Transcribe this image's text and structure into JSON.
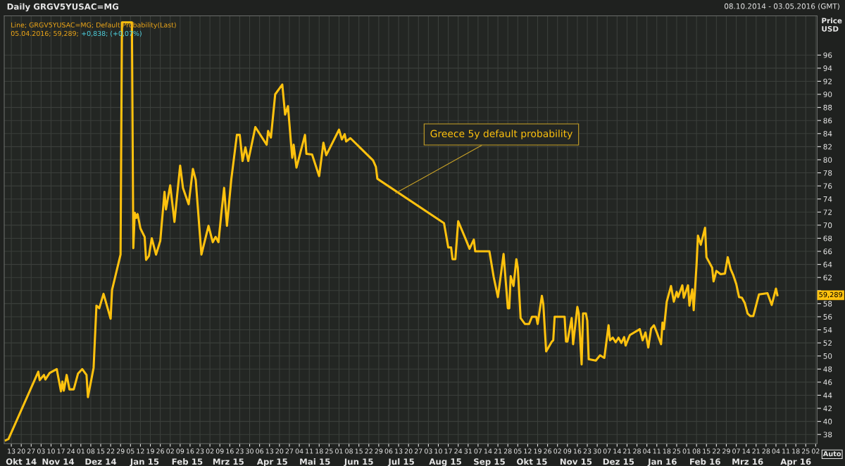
{
  "chart_data": {
    "type": "line",
    "title": "Daily GRGV5YUSAC=MG",
    "subtitle": "Line; GRGV5YUSAC=MG; Default Probability(Last)",
    "ylabel": "Price\nUSD",
    "x": [
      "2014-10-09",
      "2014-10-11",
      "2014-11-01",
      "2014-11-02",
      "2014-11-05",
      "2014-11-06",
      "2014-11-09",
      "2014-11-14",
      "2014-11-17",
      "2014-11-18",
      "2014-11-19",
      "2014-11-21",
      "2014-11-23",
      "2014-11-26",
      "2014-11-29",
      "2014-12-02",
      "2014-12-05",
      "2014-12-06",
      "2014-12-10",
      "2014-12-12",
      "2014-12-14",
      "2014-12-17",
      "2014-12-22",
      "2014-12-23",
      "2014-12-29",
      "2014-12-30",
      "2015-01-06",
      "2015-01-07",
      "2015-01-08",
      "2015-01-09",
      "2015-01-10",
      "2015-01-12",
      "2015-01-15",
      "2015-01-16",
      "2015-01-18",
      "2015-01-20",
      "2015-01-23",
      "2015-01-26",
      "2015-01-29",
      "2015-01-30",
      "2015-02-02",
      "2015-02-05",
      "2015-02-09",
      "2015-02-11",
      "2015-02-15",
      "2015-02-18",
      "2015-02-20",
      "2015-02-24",
      "2015-03-01",
      "2015-03-04",
      "2015-03-06",
      "2015-03-08",
      "2015-03-10",
      "2015-03-12",
      "2015-03-14",
      "2015-03-17",
      "2015-03-21",
      "2015-03-23",
      "2015-03-25",
      "2015-03-27",
      "2015-03-29",
      "2015-04-03",
      "2015-04-11",
      "2015-04-12",
      "2015-04-14",
      "2015-04-17",
      "2015-04-22",
      "2015-04-24",
      "2015-04-26",
      "2015-04-29",
      "2015-04-30",
      "2015-05-02",
      "2015-05-08",
      "2015-05-09",
      "2015-05-13",
      "2015-05-18",
      "2015-05-21",
      "2015-05-23",
      "2015-06-01",
      "2015-06-03",
      "2015-06-05",
      "2015-06-06",
      "2015-06-09",
      "2015-06-25",
      "2015-06-27",
      "2015-06-28",
      "2015-08-14",
      "2015-08-17",
      "2015-08-19",
      "2015-08-20",
      "2015-08-22",
      "2015-08-24",
      "2015-08-29",
      "2015-09-01",
      "2015-09-04",
      "2015-09-05",
      "2015-09-15",
      "2015-09-18",
      "2015-09-21",
      "2015-09-25",
      "2015-09-28",
      "2015-09-29",
      "2015-09-30",
      "2015-10-02",
      "2015-10-04",
      "2015-10-05",
      "2015-10-07",
      "2015-10-10",
      "2015-10-13",
      "2015-10-15",
      "2015-10-18",
      "2015-10-19",
      "2015-10-22",
      "2015-10-23",
      "2015-10-25",
      "2015-10-29",
      "2015-10-30",
      "2015-10-31",
      "2015-11-07",
      "2015-11-08",
      "2015-11-09",
      "2015-11-12",
      "2015-11-13",
      "2015-11-16",
      "2015-11-17",
      "2015-11-19",
      "2015-11-20",
      "2015-11-22",
      "2015-11-23",
      "2015-11-24",
      "2015-11-29",
      "2015-12-02",
      "2015-12-05",
      "2015-12-08",
      "2015-12-09",
      "2015-12-11",
      "2015-12-13",
      "2015-12-15",
      "2015-12-17",
      "2015-12-19",
      "2015-12-20",
      "2015-12-23",
      "2015-12-30",
      "2016-01-01",
      "2016-01-03",
      "2016-01-05",
      "2016-01-07",
      "2016-01-09",
      "2016-01-11",
      "2016-01-14",
      "2016-01-15",
      "2016-01-16",
      "2016-01-18",
      "2016-01-21",
      "2016-01-23",
      "2016-01-25",
      "2016-01-26",
      "2016-01-29",
      "2016-01-30",
      "2016-02-02",
      "2016-02-03",
      "2016-02-05",
      "2016-02-06",
      "2016-02-08",
      "2016-02-09",
      "2016-02-11",
      "2016-02-14",
      "2016-02-15",
      "2016-02-19",
      "2016-02-20",
      "2016-02-22",
      "2016-02-25",
      "2016-02-28",
      "2016-03-01",
      "2016-03-03",
      "2016-03-05",
      "2016-03-07",
      "2016-03-09",
      "2016-03-11",
      "2016-03-13",
      "2016-03-15",
      "2016-03-17",
      "2016-03-19",
      "2016-03-23",
      "2016-03-29",
      "2016-04-01",
      "2016-04-04",
      "2016-04-05"
    ],
    "series": [
      {
        "color": "#ffc20e",
        "values": [
          37.1,
          37.3,
          47.6,
          46.3,
          47.1,
          46.4,
          47.4,
          48.0,
          44.6,
          46.1,
          44.7,
          47.1,
          44.9,
          44.9,
          47.3,
          48.0,
          47.1,
          43.7,
          48.2,
          57.7,
          57.3,
          59.5,
          55.7,
          60.1,
          65.5,
          101.0,
          101.0,
          66.5,
          71.9,
          71.1,
          71.7,
          69.5,
          68.2,
          64.7,
          65.3,
          68.0,
          65.5,
          67.6,
          75.1,
          72.4,
          76.1,
          70.5,
          79.1,
          75.7,
          73.2,
          78.6,
          76.9,
          65.5,
          69.9,
          67.4,
          68.2,
          67.4,
          71.7,
          75.7,
          69.9,
          76.9,
          83.8,
          83.8,
          79.8,
          81.9,
          79.8,
          85.0,
          82.3,
          84.4,
          83.4,
          90.0,
          91.5,
          86.9,
          88.2,
          80.3,
          82.3,
          78.8,
          83.8,
          80.9,
          80.8,
          77.5,
          82.6,
          80.7,
          84.6,
          83.1,
          83.9,
          82.8,
          83.3,
          79.9,
          78.9,
          77.1,
          70.3,
          66.6,
          66.6,
          64.8,
          64.8,
          70.6,
          68.0,
          66.4,
          67.8,
          66.0,
          66.0,
          62.1,
          59.0,
          65.6,
          57.3,
          57.3,
          62.2,
          60.7,
          64.8,
          63.5,
          55.8,
          54.9,
          54.9,
          56.0,
          56.0,
          54.9,
          59.2,
          57.9,
          50.7,
          52.2,
          52.4,
          56.0,
          56.0,
          52.2,
          52.2,
          55.8,
          51.8,
          57.5,
          56.5,
          48.7,
          56.5,
          56.5,
          55.4,
          49.5,
          49.3,
          50.1,
          49.7,
          54.7,
          52.4,
          52.8,
          52.1,
          52.8,
          52.0,
          52.9,
          51.6,
          53.2,
          54.1,
          52.4,
          53.6,
          51.3,
          54.2,
          54.7,
          53.6,
          51.8,
          55.1,
          54.1,
          58.3,
          60.7,
          58.3,
          59.8,
          59.0,
          60.8,
          58.9,
          60.8,
          57.7,
          60.2,
          57.0,
          63.9,
          68.4,
          67.0,
          69.6,
          65.1,
          63.5,
          61.4,
          63.0,
          62.5,
          62.6,
          65.1,
          63.3,
          62.3,
          61.0,
          59.0,
          58.9,
          58.1,
          56.5,
          56.1,
          56.1,
          59.4,
          59.6,
          57.8,
          60.3,
          59.289
        ]
      }
    ],
    "xlim": [
      "2014-10-08",
      "2016-05-03"
    ],
    "x2lim": [
      "2014-10-08",
      "2016-05-03"
    ],
    "ylim": [
      36.6,
      102.0
    ],
    "yticks": [
      38,
      40,
      42,
      44,
      46,
      48,
      50,
      52,
      54,
      56,
      58,
      {
        "value": 60,
        "label": null
      },
      62,
      64,
      66,
      68,
      70,
      72,
      74,
      76,
      78,
      80,
      82,
      84,
      86,
      88,
      90,
      92,
      94,
      96
    ],
    "xticks": [
      {
        "value": "2014-10-13",
        "label": "13"
      },
      {
        "value": "2014-10-20",
        "label": "20"
      },
      {
        "value": "2014-10-27",
        "label": "27"
      },
      {
        "value": "2014-11-03",
        "label": "03"
      },
      {
        "value": "2014-11-10",
        "label": "10"
      },
      {
        "value": "2014-11-17",
        "label": "17"
      },
      {
        "value": "2014-11-24",
        "label": "24"
      },
      {
        "value": "2014-12-01",
        "label": "01"
      },
      {
        "value": "2014-12-08",
        "label": "08"
      },
      {
        "value": "2014-12-15",
        "label": "15"
      },
      {
        "value": "2014-12-22",
        "label": "22"
      },
      {
        "value": "2014-12-29",
        "label": "29"
      },
      {
        "value": "2015-01-05",
        "label": "05"
      },
      {
        "value": "2015-01-12",
        "label": "12"
      },
      {
        "value": "2015-01-19",
        "label": "19"
      },
      {
        "value": "2015-01-26",
        "label": "26"
      },
      {
        "value": "2015-02-02",
        "label": "02"
      },
      {
        "value": "2015-02-09",
        "label": "09"
      },
      {
        "value": "2015-02-16",
        "label": "16"
      },
      {
        "value": "2015-02-23",
        "label": "23"
      },
      {
        "value": "2015-03-02",
        "label": "02"
      },
      {
        "value": "2015-03-09",
        "label": "09"
      },
      {
        "value": "2015-03-16",
        "label": "16"
      },
      {
        "value": "2015-03-23",
        "label": "23"
      },
      {
        "value": "2015-03-30",
        "label": "30"
      },
      {
        "value": "2015-04-06",
        "label": "06"
      },
      {
        "value": "2015-04-13",
        "label": "13"
      },
      {
        "value": "2015-04-20",
        "label": "20"
      },
      {
        "value": "2015-04-27",
        "label": "27"
      },
      {
        "value": "2015-05-04",
        "label": "04"
      },
      {
        "value": "2015-05-11",
        "label": "11"
      },
      {
        "value": "2015-05-18",
        "label": "18"
      },
      {
        "value": "2015-05-25",
        "label": "25"
      },
      {
        "value": "2015-06-01",
        "label": "01"
      },
      {
        "value": "2015-06-08",
        "label": "08"
      },
      {
        "value": "2015-06-15",
        "label": "15"
      },
      {
        "value": "2015-06-22",
        "label": "22"
      },
      {
        "value": "2015-06-29",
        "label": "29"
      },
      {
        "value": "2015-07-06",
        "label": "06"
      },
      {
        "value": "2015-07-13",
        "label": "13"
      },
      {
        "value": "2015-07-20",
        "label": "20"
      },
      {
        "value": "2015-07-27",
        "label": "27"
      },
      {
        "value": "2015-08-03",
        "label": "03"
      },
      {
        "value": "2015-08-10",
        "label": "10"
      },
      {
        "value": "2015-08-17",
        "label": "17"
      },
      {
        "value": "2015-08-24",
        "label": "24"
      },
      {
        "value": "2015-08-31",
        "label": "31"
      },
      {
        "value": "2015-09-07",
        "label": "07"
      },
      {
        "value": "2015-09-14",
        "label": "14"
      },
      {
        "value": "2015-09-21",
        "label": "21"
      },
      {
        "value": "2015-09-28",
        "label": "28"
      },
      {
        "value": "2015-10-05",
        "label": "05"
      },
      {
        "value": "2015-10-12",
        "label": "12"
      },
      {
        "value": "2015-10-19",
        "label": "19"
      },
      {
        "value": "2015-10-26",
        "label": "26"
      },
      {
        "value": "2015-11-02",
        "label": "02"
      },
      {
        "value": "2015-11-09",
        "label": "09"
      },
      {
        "value": "2015-11-16",
        "label": "16"
      },
      {
        "value": "2015-11-23",
        "label": "23"
      },
      {
        "value": "2015-11-30",
        "label": "30"
      },
      {
        "value": "2015-12-07",
        "label": "07"
      },
      {
        "value": "2015-12-14",
        "label": "14"
      },
      {
        "value": "2015-12-21",
        "label": "21"
      },
      {
        "value": "2015-12-28",
        "label": "28"
      },
      {
        "value": "2016-01-04",
        "label": "04"
      },
      {
        "value": "2016-01-11",
        "label": "11"
      },
      {
        "value": "2016-01-18",
        "label": "18"
      },
      {
        "value": "2016-01-25",
        "label": "25"
      },
      {
        "value": "2016-02-01",
        "label": "01"
      },
      {
        "value": "2016-02-08",
        "label": "08"
      },
      {
        "value": "2016-02-15",
        "label": "15"
      },
      {
        "value": "2016-02-22",
        "label": "22"
      },
      {
        "value": "2016-02-29",
        "label": "29"
      },
      {
        "value": "2016-03-07",
        "label": "07"
      },
      {
        "value": "2016-03-14",
        "label": "14"
      },
      {
        "value": "2016-03-21",
        "label": "21"
      },
      {
        "value": "2016-03-28",
        "label": "28"
      },
      {
        "value": "2016-04-04",
        "label": "04"
      },
      {
        "value": "2016-04-11",
        "label": "11"
      },
      {
        "value": "2016-04-18",
        "label": "18"
      },
      {
        "value": "2016-04-25",
        "label": "25"
      },
      {
        "value": "2016-05-02",
        "label": "02"
      }
    ],
    "x2ticks": [
      {
        "value": "2014-10-20",
        "label": "Okt 14"
      },
      {
        "value": "2014-11-15",
        "label": "Nov 14"
      },
      {
        "value": "2014-12-15",
        "label": "Dez 14"
      },
      {
        "value": "2015-01-15",
        "label": "Jan 15"
      },
      {
        "value": "2015-02-14",
        "label": "Feb 15"
      },
      {
        "value": "2015-03-15",
        "label": "Mrz 15"
      },
      {
        "value": "2015-04-15",
        "label": "Apr 15"
      },
      {
        "value": "2015-05-15",
        "label": "Mai 15"
      },
      {
        "value": "2015-06-15",
        "label": "Jun 15"
      },
      {
        "value": "2015-07-15",
        "label": "Jul 15"
      },
      {
        "value": "2015-08-15",
        "label": "Aug 15"
      },
      {
        "value": "2015-09-15",
        "label": "Sep 15"
      },
      {
        "value": "2015-10-15",
        "label": "Okt 15"
      },
      {
        "value": "2015-11-15",
        "label": "Nov 15"
      },
      {
        "value": "2015-12-15",
        "label": "Dez 15"
      },
      {
        "value": "2016-01-15",
        "label": "Jan 16"
      },
      {
        "value": "2016-02-14",
        "label": "Feb 16"
      },
      {
        "value": "2016-03-15",
        "label": "Mrz 16"
      },
      {
        "value": "2016-04-18",
        "label": "Apr 16"
      }
    ],
    "grid": true,
    "legend": false,
    "marker": "none",
    "line_style": "solid",
    "annotations": [
      "05.04.2016; 59,289;",
      "+0,838; (+0,07%)",
      "08.10.2014 - 03.05.2016 (GMT)",
      "Auto",
      {
        "text": "Greece 5y default probability",
        "x": "2015-07-11",
        "y": 74.9
      },
      "59,289"
    ]
  }
}
